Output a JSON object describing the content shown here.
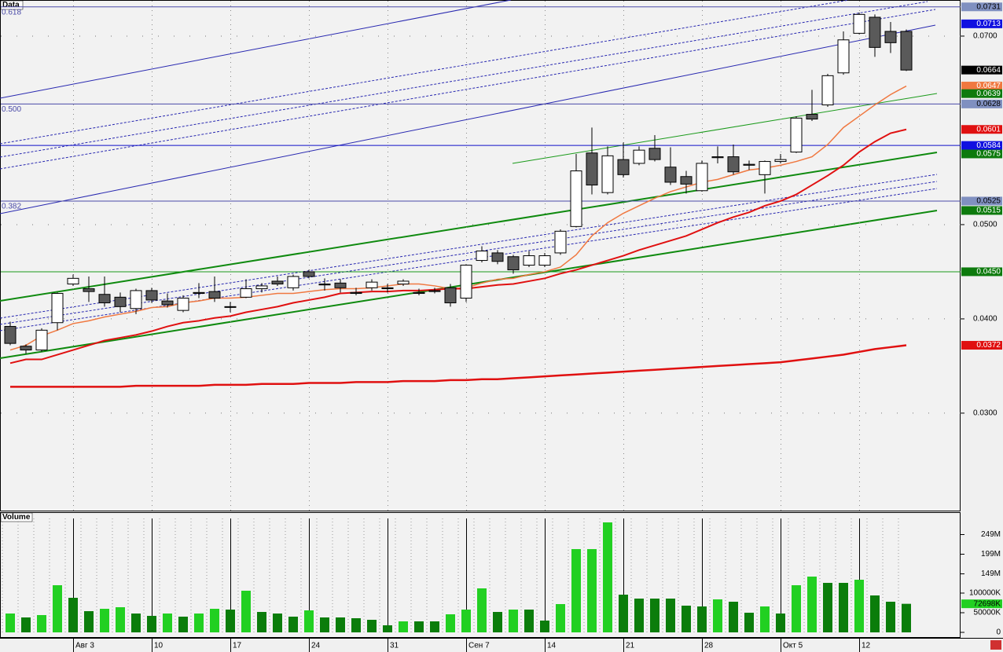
{
  "chart_data": [
    {
      "type": "candlestick",
      "title": "Data",
      "categories": [
        null,
        null,
        null,
        null,
        "Авг 3",
        null,
        null,
        null,
        null,
        "10",
        null,
        null,
        null,
        null,
        "17",
        null,
        null,
        null,
        null,
        "24",
        null,
        null,
        null,
        null,
        "31",
        null,
        null,
        null,
        null,
        "Сен 7",
        null,
        null,
        null,
        null,
        "14",
        null,
        null,
        null,
        null,
        "21",
        null,
        null,
        null,
        null,
        "28",
        null,
        null,
        null,
        null,
        "Окт 5",
        null,
        null,
        null,
        null,
        "12",
        null,
        null,
        null
      ],
      "open": [
        0.0392,
        0.0371,
        0.0367,
        0.0396,
        0.0437,
        0.0432,
        0.0426,
        0.0423,
        0.0411,
        0.043,
        0.0419,
        0.0409,
        0.0428,
        0.0429,
        0.0413,
        0.0423,
        0.0432,
        0.044,
        0.0433,
        0.045,
        0.0437,
        0.0438,
        0.0428,
        0.0433,
        0.0433,
        0.0437,
        0.0428,
        0.043,
        0.0433,
        0.0422,
        0.0462,
        0.047,
        0.0466,
        0.0457,
        0.0457,
        0.047,
        0.0498,
        0.0576,
        0.0534,
        0.0569,
        0.0565,
        0.0581,
        0.0561,
        0.0551,
        0.0536,
        0.0572,
        0.0572,
        0.0564,
        0.0553,
        0.0567,
        0.0577,
        0.0617,
        0.0627,
        0.0661,
        0.0703,
        0.072,
        0.0705,
        0.0705
      ],
      "high": [
        0.0397,
        0.0373,
        0.039,
        0.0428,
        0.0447,
        0.0445,
        0.0445,
        0.0428,
        0.0432,
        0.0433,
        0.0427,
        0.0425,
        0.0438,
        0.0445,
        0.0418,
        0.0442,
        0.0438,
        0.0445,
        0.0447,
        0.0452,
        0.0443,
        0.0442,
        0.0433,
        0.0442,
        0.0437,
        0.0442,
        0.0432,
        0.0433,
        0.0437,
        0.0458,
        0.0477,
        0.0473,
        0.0468,
        0.0472,
        0.047,
        0.0495,
        0.0575,
        0.0603,
        0.0583,
        0.0587,
        0.0583,
        0.0595,
        0.0582,
        0.0557,
        0.0568,
        0.0583,
        0.0585,
        0.0568,
        0.0568,
        0.0575,
        0.0615,
        0.0643,
        0.066,
        0.0705,
        0.0725,
        0.0723,
        0.0715,
        0.0707
      ],
      "low": [
        0.0372,
        0.0363,
        0.0365,
        0.0388,
        0.0435,
        0.0418,
        0.0413,
        0.0407,
        0.0405,
        0.0417,
        0.0412,
        0.0407,
        0.0422,
        0.0418,
        0.0407,
        0.0422,
        0.0428,
        0.0435,
        0.043,
        0.0443,
        0.043,
        0.0428,
        0.0425,
        0.043,
        0.0428,
        0.0435,
        0.0425,
        0.0427,
        0.0413,
        0.0418,
        0.046,
        0.0458,
        0.0448,
        0.0455,
        0.0455,
        0.0468,
        0.0497,
        0.0532,
        0.0532,
        0.055,
        0.0563,
        0.0567,
        0.0542,
        0.0533,
        0.0535,
        0.0565,
        0.0553,
        0.0558,
        0.0533,
        0.0565,
        0.0576,
        0.061,
        0.0625,
        0.0659,
        0.0702,
        0.0678,
        0.0682,
        0.0663
      ],
      "close": [
        0.0374,
        0.0367,
        0.0388,
        0.0427,
        0.0443,
        0.0429,
        0.0417,
        0.0413,
        0.043,
        0.042,
        0.0415,
        0.0422,
        0.0427,
        0.0422,
        0.0413,
        0.0432,
        0.0435,
        0.0437,
        0.0445,
        0.0445,
        0.0436,
        0.0433,
        0.0427,
        0.0439,
        0.0432,
        0.044,
        0.0427,
        0.0429,
        0.0417,
        0.0457,
        0.0472,
        0.0461,
        0.0452,
        0.0467,
        0.0467,
        0.0493,
        0.0557,
        0.0542,
        0.0573,
        0.0553,
        0.0579,
        0.0569,
        0.0545,
        0.0543,
        0.0565,
        0.0571,
        0.0556,
        0.0563,
        0.0567,
        0.0569,
        0.0613,
        0.0612,
        0.0658,
        0.0696,
        0.0723,
        0.0688,
        0.0693,
        0.0664
      ],
      "up_color": "#ffffff",
      "down_color": "#5a5a5a",
      "series": [
        {
          "color": "#f07840",
          "width": 1.5,
          "values": [
            0.0367,
            0.0372,
            0.0382,
            0.0388,
            0.0395,
            0.0398,
            0.0402,
            0.0405,
            0.0408,
            0.0412,
            0.0413,
            0.0417,
            0.0419,
            0.0422,
            0.0422,
            0.0423,
            0.0425,
            0.0427,
            0.0427,
            0.0429,
            0.0431,
            0.0432,
            0.0432,
            0.0433,
            0.0435,
            0.0437,
            0.0437,
            0.0435,
            0.0432,
            0.0433,
            0.0438,
            0.0442,
            0.0443,
            0.0447,
            0.045,
            0.0455,
            0.0468,
            0.0488,
            0.0502,
            0.0512,
            0.052,
            0.0528,
            0.0535,
            0.054,
            0.0545,
            0.0548,
            0.0553,
            0.0558,
            0.056,
            0.0563,
            0.0567,
            0.0572,
            0.0585,
            0.0603,
            0.0615,
            0.0627,
            0.0638,
            0.0647
          ]
        },
        {
          "color": "#e01010",
          "width": 2,
          "values": [
            0.0353,
            0.0357,
            0.0357,
            0.0362,
            0.0367,
            0.0372,
            0.0377,
            0.038,
            0.0383,
            0.0387,
            0.0392,
            0.0396,
            0.0398,
            0.0401,
            0.0403,
            0.0407,
            0.041,
            0.0413,
            0.0417,
            0.042,
            0.0423,
            0.0427,
            0.0428,
            0.0429,
            0.0429,
            0.043,
            0.043,
            0.0431,
            0.0432,
            0.0432,
            0.0434,
            0.0436,
            0.0437,
            0.044,
            0.0443,
            0.0448,
            0.0452,
            0.0457,
            0.0462,
            0.0467,
            0.0473,
            0.0478,
            0.0483,
            0.0488,
            0.0495,
            0.0502,
            0.0508,
            0.0513,
            0.052,
            0.0525,
            0.0532,
            0.0542,
            0.0552,
            0.0563,
            0.0577,
            0.0588,
            0.0597,
            0.0601
          ]
        },
        {
          "color": "#e01010",
          "width": 2.5,
          "values": [
            0.0328,
            0.0328,
            0.0328,
            0.0328,
            0.0328,
            0.0328,
            0.0328,
            0.0328,
            0.0329,
            0.0329,
            0.0329,
            0.0329,
            0.0329,
            0.033,
            0.033,
            0.033,
            0.0331,
            0.0331,
            0.0331,
            0.0332,
            0.0332,
            0.0332,
            0.0333,
            0.0333,
            0.0333,
            0.0334,
            0.0334,
            0.0334,
            0.0335,
            0.0335,
            0.0336,
            0.0336,
            0.0337,
            0.0338,
            0.0339,
            0.034,
            0.0341,
            0.0342,
            0.0343,
            0.0344,
            0.0345,
            0.0346,
            0.0347,
            0.0348,
            0.0349,
            0.035,
            0.0351,
            0.0352,
            0.0353,
            0.0354,
            0.0356,
            0.0358,
            0.036,
            0.0362,
            0.0365,
            0.0368,
            0.037,
            0.0372
          ]
        }
      ],
      "ylim": [
        0.01966,
        0.07383
      ],
      "yticks": [
        {
          "value": 0.07,
          "label": "0.0700"
        },
        {
          "value": 0.05,
          "label": "0.0500"
        },
        {
          "value": 0.04,
          "label": "0.0400"
        },
        {
          "value": 0.03,
          "label": "0.0300"
        }
      ],
      "grid": true,
      "levels": [
        {
          "value": 0.0731,
          "label": "0.618",
          "color": "#4a4aa8"
        },
        {
          "value": 0.0628,
          "label": "0.500",
          "color": "#4a4aa8"
        },
        {
          "value": 0.0525,
          "label": "0.382",
          "color": "#4a4aa8"
        },
        {
          "value": 0.0584,
          "color": "#1010c8"
        },
        {
          "value": 0.045,
          "color": "#1a9a1a"
        }
      ],
      "markers": [
        {
          "value": 0.0731,
          "label": "0.0731",
          "color": "#8090c0",
          "text_color": "#000000"
        },
        {
          "value": 0.0713,
          "label": "0.0713",
          "color": "#1010e0",
          "text_color": "#ffffff"
        },
        {
          "value": 0.0664,
          "label": "0.0664",
          "color": "#000000",
          "text_color": "#ffffff"
        },
        {
          "value": 0.0647,
          "label": "0.0647",
          "color": "#f07840",
          "text_color": "#ffffff"
        },
        {
          "value": 0.0639,
          "label": "0.0639",
          "color": "#0d7a0d",
          "text_color": "#ffffff"
        },
        {
          "value": 0.0628,
          "label": "0.0628",
          "color": "#8090c0",
          "text_color": "#000000"
        },
        {
          "value": 0.0601,
          "label": "0.0601",
          "color": "#e01010",
          "text_color": "#ffffff"
        },
        {
          "value": 0.0584,
          "label": "0.0584",
          "color": "#1010e0",
          "text_color": "#ffffff"
        },
        {
          "value": 0.0575,
          "label": "0.0575",
          "color": "#0d7a0d",
          "text_color": "#ffffff"
        },
        {
          "value": 0.0525,
          "label": "0.0525",
          "color": "#8090c0",
          "text_color": "#000000"
        },
        {
          "value": 0.0515,
          "label": "0.0515",
          "color": "#0d7a0d",
          "text_color": "#ffffff"
        },
        {
          "value": 0.045,
          "label": "0.0450",
          "color": "#0d7a0d",
          "text_color": "#ffffff"
        },
        {
          "value": 0.0372,
          "label": "0.0372",
          "color": "#e01010",
          "text_color": "#ffffff"
        }
      ]
    },
    {
      "type": "bar",
      "title": "Volume",
      "values": [
        48000000,
        38000000,
        44000000,
        120000000,
        88000000,
        54000000,
        60000000,
        64000000,
        48000000,
        42000000,
        48000000,
        40000000,
        48000000,
        60000000,
        58000000,
        106000000,
        52000000,
        48000000,
        40000000,
        56000000,
        38000000,
        38000000,
        36000000,
        32000000,
        18000000,
        28000000,
        28000000,
        28000000,
        46000000,
        58000000,
        112000000,
        52000000,
        58000000,
        58000000,
        30000000,
        72000000,
        212000000,
        212000000,
        280000000,
        96000000,
        86000000,
        86000000,
        86000000,
        68000000,
        66000000,
        84000000,
        78000000,
        50000000,
        66000000,
        48000000,
        120000000,
        142000000,
        126000000,
        126000000,
        134000000,
        94000000,
        78000000,
        72698000
      ],
      "colors": [
        "#22d022",
        "#0b7d0b",
        "#22d022",
        "#22d022",
        "#0b7d0b",
        "#0b7d0b",
        "#22d022",
        "#22d022",
        "#0b7d0b",
        "#0b7d0b",
        "#22d022",
        "#0b7d0b",
        "#22d022",
        "#22d022",
        "#0b7d0b",
        "#22d022",
        "#0b7d0b",
        "#0b7d0b",
        "#0b7d0b",
        "#22d022",
        "#0b7d0b",
        "#0b7d0b",
        "#0b7d0b",
        "#0b7d0b",
        "#0b7d0b",
        "#22d022",
        "#0b7d0b",
        "#0b7d0b",
        "#22d022",
        "#22d022",
        "#22d022",
        "#0b7d0b",
        "#22d022",
        "#0b7d0b",
        "#0b7d0b",
        "#22d022",
        "#22d022",
        "#22d022",
        "#22d022",
        "#0b7d0b",
        "#0b7d0b",
        "#0b7d0b",
        "#0b7d0b",
        "#0b7d0b",
        "#0b7d0b",
        "#22d022",
        "#0b7d0b",
        "#0b7d0b",
        "#22d022",
        "#0b7d0b",
        "#22d022",
        "#22d022",
        "#0b7d0b",
        "#0b7d0b",
        "#22d022",
        "#0b7d0b",
        "#0b7d0b",
        "#0b7d0b"
      ],
      "ylim": [
        0,
        306000000
      ],
      "yticks": [
        {
          "value": 249000000,
          "label": "249M"
        },
        {
          "value": 199000000,
          "label": "199M"
        },
        {
          "value": 149000000,
          "label": "149M"
        },
        {
          "value": 100000000,
          "label": "100000K"
        },
        {
          "value": 50000000,
          "label": "50000K"
        },
        0
      ],
      "last_marker": {
        "value": 72698000,
        "label": "72698K",
        "color": "#22d022",
        "text_color": "#000000"
      }
    }
  ]
}
